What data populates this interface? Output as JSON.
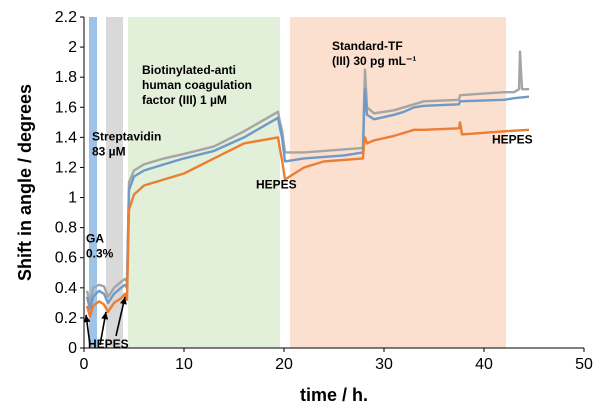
{
  "chart_data": {
    "type": "line",
    "title": "",
    "xlabel": "time / h.",
    "ylabel": "Shift in angle / degrees",
    "xlim": [
      0,
      50
    ],
    "ylim": [
      0,
      2.2
    ],
    "x_ticks": [
      "0",
      "10",
      "20",
      "30",
      "40",
      "50"
    ],
    "y_ticks": [
      "0",
      "0.2",
      "0.4",
      "0.6",
      "0.8",
      "1",
      "1.2",
      "1.4",
      "1.6",
      "1.8",
      "2",
      "2.2"
    ],
    "grid": false,
    "legend": "none",
    "regions": [
      {
        "x0": 0.5,
        "x1": 1.3,
        "color": "#9dc3e6"
      },
      {
        "x0": 2.2,
        "x1": 3.9,
        "color": "#d9d9d9"
      },
      {
        "x0": 4.4,
        "x1": 19.6,
        "color": "#e2efd9"
      },
      {
        "x0": 20.6,
        "x1": 42.2,
        "color": "#fbe0d0"
      }
    ],
    "series": [
      {
        "color": "#a5a5a5",
        "points": [
          [
            0.3,
            0.38
          ],
          [
            0.6,
            0.3
          ],
          [
            0.9,
            0.4
          ],
          [
            1.5,
            0.42
          ],
          [
            2.0,
            0.41
          ],
          [
            2.4,
            0.34
          ],
          [
            3.0,
            0.4
          ],
          [
            3.7,
            0.44
          ],
          [
            4.1,
            0.46
          ],
          [
            4.3,
            0.44
          ],
          [
            4.5,
            1.1
          ],
          [
            5.0,
            1.18
          ],
          [
            6.0,
            1.22
          ],
          [
            8.0,
            1.26
          ],
          [
            10.0,
            1.29
          ],
          [
            13.0,
            1.34
          ],
          [
            16.0,
            1.44
          ],
          [
            19.4,
            1.57
          ],
          [
            19.6,
            1.5
          ],
          [
            19.8,
            1.45
          ],
          [
            20.1,
            1.3
          ],
          [
            22.0,
            1.3
          ],
          [
            26.0,
            1.32
          ],
          [
            27.9,
            1.33
          ],
          [
            28.0,
            1.62
          ],
          [
            28.1,
            1.85
          ],
          [
            28.3,
            1.6
          ],
          [
            29.0,
            1.56
          ],
          [
            31.0,
            1.58
          ],
          [
            32.0,
            1.6
          ],
          [
            33.0,
            1.62
          ],
          [
            34.0,
            1.64
          ],
          [
            37.5,
            1.65
          ],
          [
            37.6,
            1.68
          ],
          [
            42.0,
            1.7
          ],
          [
            43.0,
            1.7
          ],
          [
            43.5,
            1.72
          ],
          [
            43.6,
            1.97
          ],
          [
            43.8,
            1.72
          ],
          [
            44.5,
            1.72
          ]
        ]
      },
      {
        "color": "#6f9ac8",
        "points": [
          [
            0.3,
            0.34
          ],
          [
            0.6,
            0.26
          ],
          [
            0.9,
            0.34
          ],
          [
            1.5,
            0.38
          ],
          [
            2.0,
            0.36
          ],
          [
            2.4,
            0.3
          ],
          [
            3.0,
            0.36
          ],
          [
            3.7,
            0.4
          ],
          [
            4.1,
            0.42
          ],
          [
            4.3,
            0.4
          ],
          [
            4.5,
            1.05
          ],
          [
            5.0,
            1.14
          ],
          [
            6.0,
            1.18
          ],
          [
            8.0,
            1.22
          ],
          [
            10.0,
            1.26
          ],
          [
            13.0,
            1.31
          ],
          [
            16.0,
            1.4
          ],
          [
            19.4,
            1.53
          ],
          [
            19.6,
            1.46
          ],
          [
            19.8,
            1.4
          ],
          [
            20.1,
            1.24
          ],
          [
            22.0,
            1.26
          ],
          [
            26.0,
            1.28
          ],
          [
            27.9,
            1.3
          ],
          [
            28.0,
            1.55
          ],
          [
            28.1,
            1.72
          ],
          [
            28.3,
            1.55
          ],
          [
            29.0,
            1.52
          ],
          [
            31.0,
            1.55
          ],
          [
            32.0,
            1.57
          ],
          [
            33.0,
            1.6
          ],
          [
            34.0,
            1.61
          ],
          [
            37.5,
            1.62
          ],
          [
            37.6,
            1.64
          ],
          [
            42.0,
            1.65
          ],
          [
            43.0,
            1.66
          ],
          [
            44.5,
            1.67
          ]
        ]
      },
      {
        "color": "#ed7d31",
        "points": [
          [
            0.3,
            0.28
          ],
          [
            0.6,
            0.21
          ],
          [
            0.9,
            0.28
          ],
          [
            1.5,
            0.31
          ],
          [
            2.0,
            0.29
          ],
          [
            2.4,
            0.24
          ],
          [
            3.0,
            0.3
          ],
          [
            3.7,
            0.33
          ],
          [
            4.1,
            0.36
          ],
          [
            4.3,
            0.32
          ],
          [
            4.5,
            0.92
          ],
          [
            5.0,
            1.02
          ],
          [
            6.0,
            1.08
          ],
          [
            8.0,
            1.12
          ],
          [
            10.0,
            1.16
          ],
          [
            13.0,
            1.26
          ],
          [
            16.0,
            1.36
          ],
          [
            19.4,
            1.4
          ],
          [
            19.6,
            1.32
          ],
          [
            19.8,
            1.25
          ],
          [
            20.1,
            1.12
          ],
          [
            22.0,
            1.2
          ],
          [
            24.0,
            1.24
          ],
          [
            26.0,
            1.25
          ],
          [
            27.9,
            1.26
          ],
          [
            28.0,
            1.36
          ],
          [
            28.1,
            1.4
          ],
          [
            28.3,
            1.36
          ],
          [
            29.0,
            1.38
          ],
          [
            31.0,
            1.41
          ],
          [
            32.0,
            1.43
          ],
          [
            33.0,
            1.45
          ],
          [
            34.0,
            1.45
          ],
          [
            37.5,
            1.46
          ],
          [
            37.6,
            1.5
          ],
          [
            37.8,
            1.42
          ],
          [
            42.0,
            1.44
          ],
          [
            44.5,
            1.45
          ]
        ]
      }
    ],
    "annotations": [
      {
        "lines": [
          "Streptavidin",
          "83 µM"
        ],
        "x": 0.8,
        "y": 1.38
      },
      {
        "lines": [
          "Biotinylated-anti",
          "human coagulation",
          "factor (III) 1 µM"
        ],
        "x": 5.8,
        "y": 1.82
      },
      {
        "lines": [
          "HEPES"
        ],
        "x": 17.2,
        "y": 1.06
      },
      {
        "lines": [
          "Standard-TF",
          "(III) 30 pg mL⁻¹"
        ],
        "x": 24.8,
        "y": 1.98
      },
      {
        "lines": [
          "HEPES"
        ],
        "x": 40.8,
        "y": 1.36
      },
      {
        "lines": [
          "GA",
          "0.3%"
        ],
        "x": 0.2,
        "y": 0.7
      },
      {
        "lines": [
          "HEPES"
        ],
        "x": 0.4,
        "y": 0.0
      }
    ],
    "arrows": [
      {
        "x0": 0.6,
        "y0": 0.02,
        "x1": 0.2,
        "y1": 0.22
      },
      {
        "x0": 1.6,
        "y0": 0.02,
        "x1": 2.2,
        "y1": 0.24
      },
      {
        "x0": 3.2,
        "y0": 0.08,
        "x1": 4.1,
        "y1": 0.34
      }
    ]
  }
}
